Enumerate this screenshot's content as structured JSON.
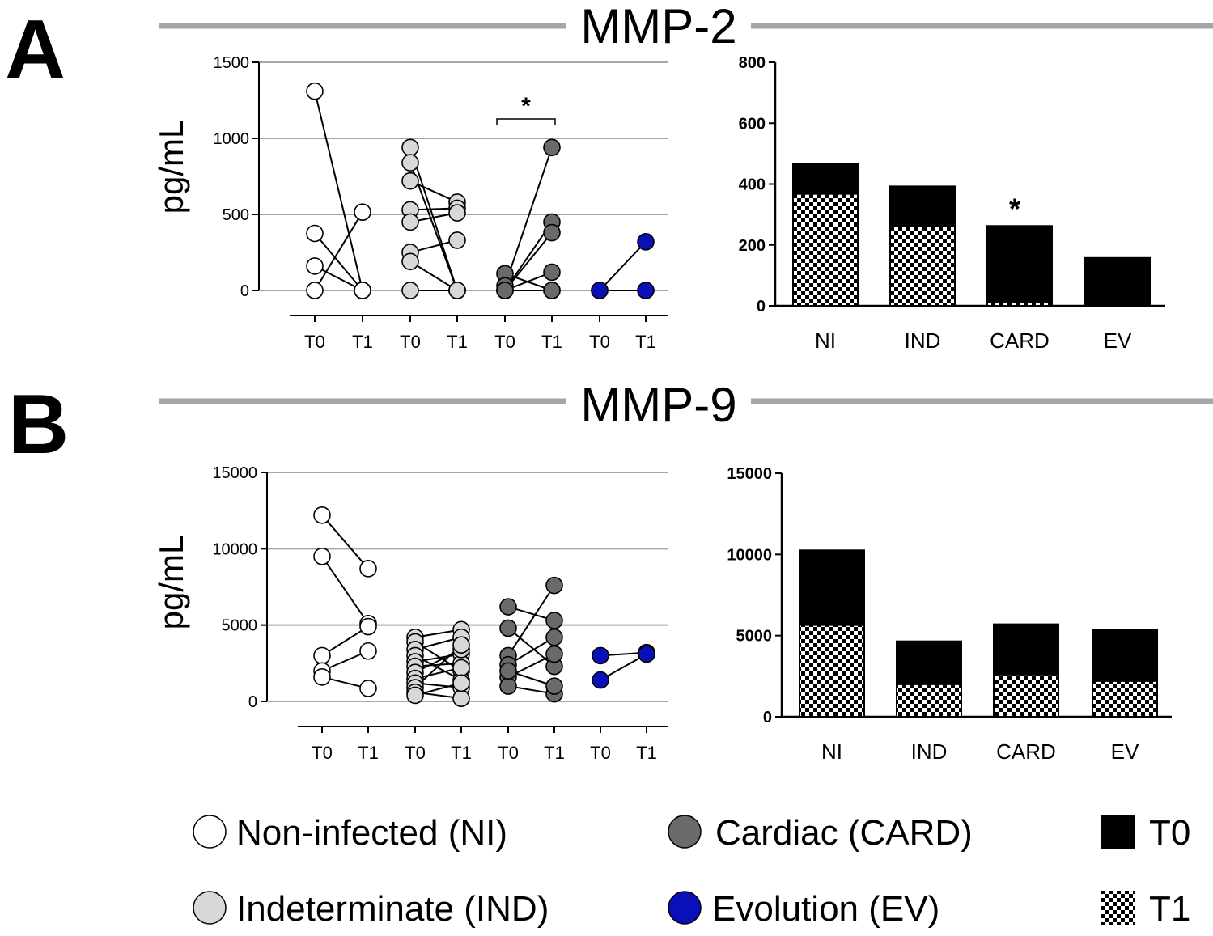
{
  "panels": [
    {
      "letter": "A",
      "title": "MMP-2",
      "ylabel": "pg/mL",
      "paired": {
        "type": "scatter",
        "ylim": [
          0,
          1500
        ],
        "yticks": [
          0,
          500,
          1000,
          1500
        ],
        "grid": true,
        "timepoints": [
          "T0",
          "T1",
          "T0",
          "T1",
          "T0",
          "T1",
          "T0",
          "T1"
        ],
        "groups": [
          {
            "key": "NI",
            "color": "#ffffff",
            "pairs": [
              [
                1310,
                0
              ],
              [
                375,
                0
              ],
              [
                160,
                0
              ],
              [
                0,
                515
              ]
            ]
          },
          {
            "key": "IND",
            "color": "#d8d8d8",
            "pairs": [
              [
                940,
                0
              ],
              [
                840,
                0
              ],
              [
                720,
                580
              ],
              [
                530,
                540
              ],
              [
                450,
                510
              ],
              [
                250,
                330
              ],
              [
                190,
                0
              ],
              [
                0,
                0
              ]
            ]
          },
          {
            "key": "CARD",
            "color": "#6a6a6a",
            "pairs": [
              [
                110,
                0
              ],
              [
                30,
                940
              ],
              [
                0,
                450
              ],
              [
                0,
                380
              ],
              [
                0,
                120
              ],
              [
                0,
                0
              ]
            ]
          },
          {
            "key": "EV",
            "color": "#0a10b8",
            "pairs": [
              [
                0,
                320
              ],
              [
                0,
                0
              ]
            ]
          }
        ],
        "sig_bracket": {
          "group": "CARD",
          "label": "*"
        }
      },
      "bars": {
        "type": "bar",
        "ylim": [
          0,
          800
        ],
        "yticks": [
          0,
          200,
          400,
          600,
          800
        ],
        "categories": [
          "NI",
          "IND",
          "CARD",
          "EV"
        ],
        "series": [
          {
            "name": "T0",
            "values": [
              470,
              395,
              265,
              160
            ]
          },
          {
            "name": "T1",
            "values": [
              365,
              260,
              10,
              0
            ]
          }
        ],
        "annotations": [
          {
            "category": "CARD",
            "label": "*"
          }
        ]
      }
    },
    {
      "letter": "B",
      "title": "MMP-9",
      "ylabel": "pg/mL",
      "paired": {
        "type": "scatter",
        "ylim": [
          0,
          15000
        ],
        "yticks": [
          0,
          5000,
          10000,
          15000
        ],
        "grid": true,
        "timepoints": [
          "T0",
          "T1",
          "T0",
          "T1",
          "T0",
          "T1",
          "T0",
          "T1"
        ],
        "groups": [
          {
            "key": "NI",
            "color": "#ffffff",
            "pairs": [
              [
                12200,
                8700
              ],
              [
                9500,
                5100
              ],
              [
                3000,
                4900
              ],
              [
                2000,
                3300
              ],
              [
                1600,
                850
              ]
            ]
          },
          {
            "key": "IND",
            "color": "#d8d8d8",
            "pairs": [
              [
                4200,
                4700
              ],
              [
                3900,
                2000
              ],
              [
                3400,
                4200
              ],
              [
                3000,
                1400
              ],
              [
                2600,
                3100
              ],
              [
                2300,
                2500
              ],
              [
                1900,
                3400
              ],
              [
                1500,
                2200
              ],
              [
                1200,
                900
              ],
              [
                900,
                3700
              ],
              [
                600,
                200
              ],
              [
                400,
                1200
              ]
            ]
          },
          {
            "key": "CARD",
            "color": "#6a6a6a",
            "pairs": [
              [
                6200,
                5300
              ],
              [
                4800,
                2300
              ],
              [
                3000,
                7600
              ],
              [
                2400,
                4200
              ],
              [
                1600,
                3100
              ],
              [
                1000,
                500
              ],
              [
                2000,
                1000
              ]
            ]
          },
          {
            "key": "EV",
            "color": "#0a10b8",
            "pairs": [
              [
                3000,
                3200
              ],
              [
                1400,
                3100
              ]
            ]
          }
        ]
      },
      "bars": {
        "type": "bar",
        "ylim": [
          0,
          15000
        ],
        "yticks": [
          0,
          5000,
          10000,
          15000
        ],
        "categories": [
          "NI",
          "IND",
          "CARD",
          "EV"
        ],
        "series": [
          {
            "name": "T0",
            "values": [
              10300,
              4700,
              5750,
              5400
            ]
          },
          {
            "name": "T1",
            "values": [
              5600,
              1950,
              2550,
              2150
            ]
          }
        ]
      }
    }
  ],
  "legend": {
    "groups": [
      {
        "label": "Non-infected (NI)",
        "color": "#ffffff"
      },
      {
        "label": "Indeterminate (IND)",
        "color": "#d8d8d8"
      },
      {
        "label": "Cardiac (CARD)",
        "color": "#6a6a6a"
      },
      {
        "label": "Evolution (EV)",
        "color": "#0a10b8"
      }
    ],
    "fills": [
      {
        "label": "T0",
        "pattern": "solid"
      },
      {
        "label": "T1",
        "pattern": "checker"
      }
    ]
  },
  "chart_data": [
    {
      "type": "scatter",
      "title": "MMP-2",
      "ylabel": "pg/mL",
      "ylim": [
        0,
        1500
      ],
      "x": [
        "T0",
        "T1"
      ],
      "series": [
        {
          "name": "Non-infected (NI)",
          "pairs": [
            [
              1310,
              0
            ],
            [
              375,
              0
            ],
            [
              160,
              0
            ],
            [
              0,
              515
            ]
          ]
        },
        {
          "name": "Indeterminate (IND)",
          "pairs": [
            [
              940,
              0
            ],
            [
              840,
              0
            ],
            [
              720,
              580
            ],
            [
              530,
              540
            ],
            [
              450,
              510
            ],
            [
              250,
              330
            ],
            [
              190,
              0
            ],
            [
              0,
              0
            ]
          ]
        },
        {
          "name": "Cardiac (CARD)",
          "pairs": [
            [
              110,
              0
            ],
            [
              30,
              940
            ],
            [
              0,
              450
            ],
            [
              0,
              380
            ],
            [
              0,
              120
            ],
            [
              0,
              0
            ]
          ]
        },
        {
          "name": "Evolution (EV)",
          "pairs": [
            [
              0,
              320
            ],
            [
              0,
              0
            ]
          ]
        }
      ]
    },
    {
      "type": "bar",
      "title": "MMP-2",
      "ylim": [
        0,
        800
      ],
      "categories": [
        "NI",
        "IND",
        "CARD",
        "EV"
      ],
      "series": [
        {
          "name": "T0",
          "values": [
            470,
            395,
            265,
            160
          ]
        },
        {
          "name": "T1",
          "values": [
            365,
            260,
            10,
            0
          ]
        }
      ]
    },
    {
      "type": "scatter",
      "title": "MMP-9",
      "ylabel": "pg/mL",
      "ylim": [
        0,
        15000
      ],
      "x": [
        "T0",
        "T1"
      ],
      "series": [
        {
          "name": "Non-infected (NI)",
          "pairs": [
            [
              12200,
              8700
            ],
            [
              9500,
              5100
            ],
            [
              3000,
              4900
            ],
            [
              2000,
              3300
            ],
            [
              1600,
              850
            ]
          ]
        },
        {
          "name": "Indeterminate (IND)",
          "pairs": [
            [
              4200,
              4700
            ],
            [
              3900,
              2000
            ],
            [
              3400,
              4200
            ],
            [
              3000,
              1400
            ],
            [
              2600,
              3100
            ],
            [
              2300,
              2500
            ],
            [
              1900,
              3400
            ],
            [
              1500,
              2200
            ],
            [
              1200,
              900
            ],
            [
              900,
              3700
            ],
            [
              600,
              200
            ],
            [
              400,
              1200
            ]
          ]
        },
        {
          "name": "Cardiac (CARD)",
          "pairs": [
            [
              6200,
              5300
            ],
            [
              4800,
              2300
            ],
            [
              3000,
              7600
            ],
            [
              2400,
              4200
            ],
            [
              1600,
              3100
            ],
            [
              1000,
              500
            ],
            [
              2000,
              1000
            ]
          ]
        },
        {
          "name": "Evolution (EV)",
          "pairs": [
            [
              3000,
              3200
            ],
            [
              1400,
              3100
            ]
          ]
        }
      ]
    },
    {
      "type": "bar",
      "title": "MMP-9",
      "ylim": [
        0,
        15000
      ],
      "categories": [
        "NI",
        "IND",
        "CARD",
        "EV"
      ],
      "series": [
        {
          "name": "T0",
          "values": [
            10300,
            4700,
            5750,
            5400
          ]
        },
        {
          "name": "T1",
          "values": [
            5600,
            1950,
            2550,
            2150
          ]
        }
      ]
    }
  ]
}
